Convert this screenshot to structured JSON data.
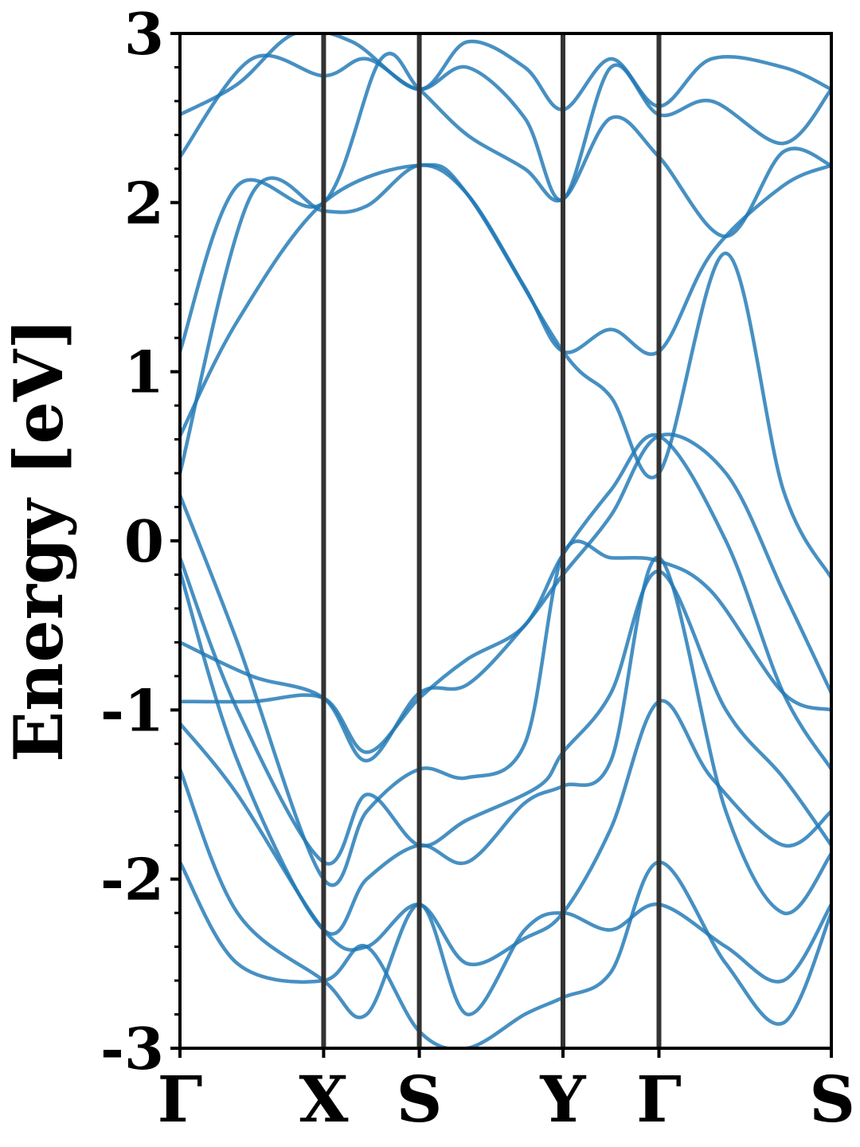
{
  "chart_data": {
    "type": "line",
    "title": "",
    "xlabel": "",
    "ylabel": "Energy [eV]",
    "ylim": [
      -3,
      3
    ],
    "yticks": [
      -3,
      -2,
      -1,
      0,
      1,
      2,
      3
    ],
    "ytick_labels": [
      "-3",
      "-2",
      "-1",
      "0",
      "1",
      "2",
      "3"
    ],
    "kpath": [
      {
        "label": "Γ",
        "x": 0.0
      },
      {
        "label": "X",
        "x": 0.5
      },
      {
        "label": "S",
        "x": 0.833
      },
      {
        "label": "Y",
        "x": 1.333
      },
      {
        "label": "Γ",
        "x": 1.667
      },
      {
        "label": "S",
        "x": 2.267
      }
    ],
    "grid": false,
    "colors": {
      "band": "#1f77b4",
      "kline": "#333333",
      "axis": "#000000"
    },
    "series": [
      {
        "x": [
          0.0,
          0.25,
          0.5,
          0.65,
          0.833,
          1.0,
          1.2,
          1.333,
          1.5,
          1.667,
          1.9,
          2.1,
          2.267
        ],
        "values": [
          -0.6,
          -0.8,
          -0.93,
          -1.3,
          -0.9,
          -0.85,
          -0.5,
          -0.2,
          0.15,
          0.62,
          0.4,
          -0.3,
          -0.9
        ]
      },
      {
        "x": [
          0.0,
          0.25,
          0.5,
          0.65,
          0.833,
          1.0,
          1.2,
          1.333,
          1.5,
          1.667,
          1.9,
          2.1,
          2.267
        ],
        "values": [
          -0.95,
          -0.95,
          -0.93,
          -1.25,
          -0.93,
          -0.7,
          -0.5,
          -0.08,
          0.3,
          0.62,
          0.0,
          -0.9,
          -1.35
        ]
      },
      {
        "x": [
          0.0,
          0.2,
          0.5,
          0.65,
          0.833,
          1.0,
          1.2,
          1.333,
          1.5,
          1.667,
          1.85,
          2.1,
          2.267
        ],
        "values": [
          0.27,
          -0.6,
          -2.0,
          -1.6,
          -1.35,
          -1.4,
          -1.2,
          -0.08,
          -0.1,
          -0.12,
          -0.3,
          -0.9,
          -1.0
        ]
      },
      {
        "x": [
          0.0,
          0.2,
          0.5,
          0.65,
          0.833,
          1.0,
          1.25,
          1.333,
          1.5,
          1.667,
          1.9,
          2.1,
          2.267
        ],
        "values": [
          -0.1,
          -1.0,
          -1.9,
          -1.5,
          -1.8,
          -1.65,
          -1.45,
          -1.25,
          -0.9,
          -0.18,
          -1.0,
          -1.4,
          -1.8
        ]
      },
      {
        "x": [
          0.0,
          0.2,
          0.5,
          0.65,
          0.833,
          1.0,
          1.2,
          1.333,
          1.5,
          1.667,
          1.9,
          2.1,
          2.267
        ],
        "values": [
          -0.18,
          -1.3,
          -2.3,
          -2.0,
          -1.8,
          -1.9,
          -1.55,
          -1.45,
          -1.3,
          -0.1,
          -1.6,
          -2.2,
          -1.85
        ]
      },
      {
        "x": [
          0.0,
          0.2,
          0.5,
          0.65,
          0.833,
          1.0,
          1.2,
          1.333,
          1.5,
          1.667,
          1.85,
          2.1,
          2.267
        ],
        "values": [
          -1.08,
          -1.5,
          -2.3,
          -2.4,
          -2.15,
          -2.5,
          -2.35,
          -2.2,
          -1.7,
          -0.95,
          -1.4,
          -1.8,
          -1.6
        ]
      },
      {
        "x": [
          0.0,
          0.2,
          0.5,
          0.65,
          0.833,
          1.0,
          1.2,
          1.333,
          1.5,
          1.667,
          1.9,
          2.1,
          2.267
        ],
        "values": [
          -1.35,
          -2.2,
          -2.6,
          -2.8,
          -2.15,
          -2.8,
          -2.3,
          -2.2,
          -2.3,
          -2.15,
          -2.4,
          -2.6,
          -2.15
        ]
      },
      {
        "x": [
          0.0,
          0.2,
          0.5,
          0.65,
          0.833,
          1.0,
          1.2,
          1.333,
          1.5,
          1.667,
          1.9,
          2.1,
          2.267
        ],
        "values": [
          -1.9,
          -2.5,
          -2.6,
          -2.4,
          -2.9,
          -3.0,
          -2.8,
          -2.7,
          -2.55,
          -1.9,
          -2.5,
          -2.85,
          -2.2
        ]
      },
      {
        "x": [
          0.0,
          0.2,
          0.5,
          0.833,
          1.0,
          1.333,
          1.5,
          1.667,
          1.9,
          2.1,
          2.267
        ],
        "values": [
          0.62,
          1.3,
          2.0,
          2.22,
          2.05,
          1.12,
          0.85,
          0.4,
          1.7,
          0.3,
          -0.22
        ]
      },
      {
        "x": [
          0.0,
          0.25,
          0.5,
          0.65,
          0.833,
          1.0,
          1.2,
          1.333,
          1.5,
          1.667,
          1.85,
          2.1,
          2.267
        ],
        "values": [
          0.4,
          2.05,
          1.95,
          1.98,
          2.22,
          2.05,
          1.5,
          1.12,
          1.25,
          1.12,
          1.7,
          2.1,
          2.22
        ]
      },
      {
        "x": [
          0.0,
          0.2,
          0.5,
          0.7,
          0.833,
          1.0,
          1.2,
          1.333,
          1.5,
          1.667,
          1.9,
          2.1,
          2.267
        ],
        "values": [
          1.12,
          2.1,
          2.0,
          2.85,
          2.67,
          2.4,
          2.2,
          2.02,
          2.5,
          2.27,
          1.8,
          2.3,
          2.22
        ]
      },
      {
        "x": [
          0.0,
          0.25,
          0.5,
          0.65,
          0.833,
          1.0,
          1.2,
          1.333,
          1.5,
          1.667,
          1.85,
          2.1,
          2.267
        ],
        "values": [
          2.27,
          2.85,
          2.75,
          2.85,
          2.67,
          2.8,
          2.5,
          2.02,
          2.8,
          2.52,
          2.6,
          2.35,
          2.67
        ]
      },
      {
        "x": [
          0.0,
          0.2,
          0.4,
          0.6,
          0.833,
          1.0,
          1.2,
          1.333,
          1.5,
          1.667,
          1.85,
          2.1,
          2.267
        ],
        "values": [
          2.52,
          2.7,
          3.0,
          2.95,
          2.67,
          2.95,
          2.8,
          2.55,
          2.85,
          2.57,
          2.85,
          2.8,
          2.67
        ]
      }
    ]
  }
}
